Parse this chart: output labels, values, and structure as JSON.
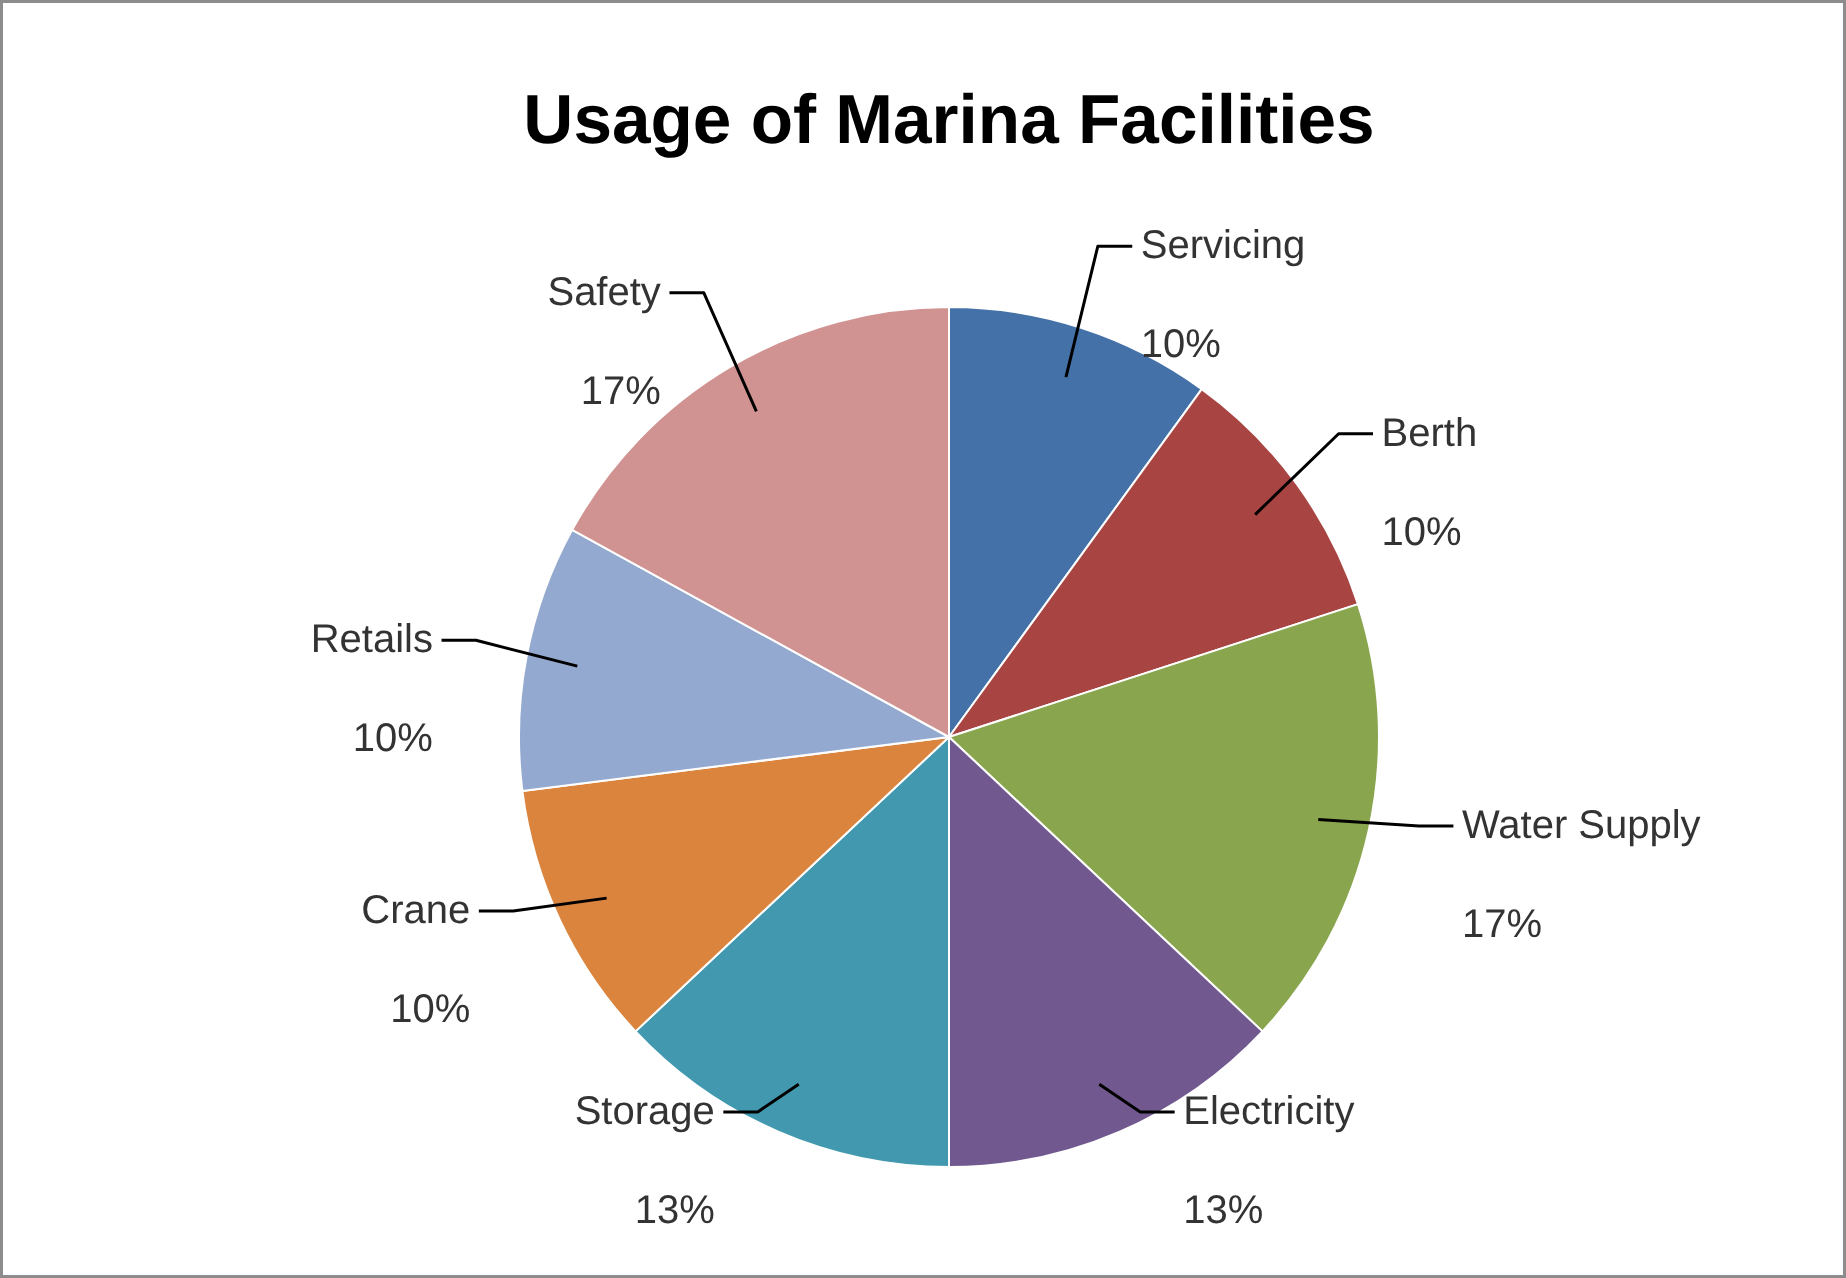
{
  "chart_data": {
    "type": "pie",
    "title": "Usage of Marina Facilities",
    "categories": [
      "Servicing",
      "Berth",
      "Water Supply",
      "Electricity",
      "Storage",
      "Crane",
      "Retails",
      "Safety"
    ],
    "values": [
      10,
      10,
      17,
      13,
      13,
      10,
      10,
      17
    ],
    "value_labels": [
      "10%",
      "10%",
      "17%",
      "13%",
      "13%",
      "10%",
      "10%",
      "17%"
    ],
    "colors": [
      "#4472a8",
      "#a84442",
      "#89a54e",
      "#71588f",
      "#4198af",
      "#db843d",
      "#93a9cf",
      "#d09392"
    ]
  }
}
